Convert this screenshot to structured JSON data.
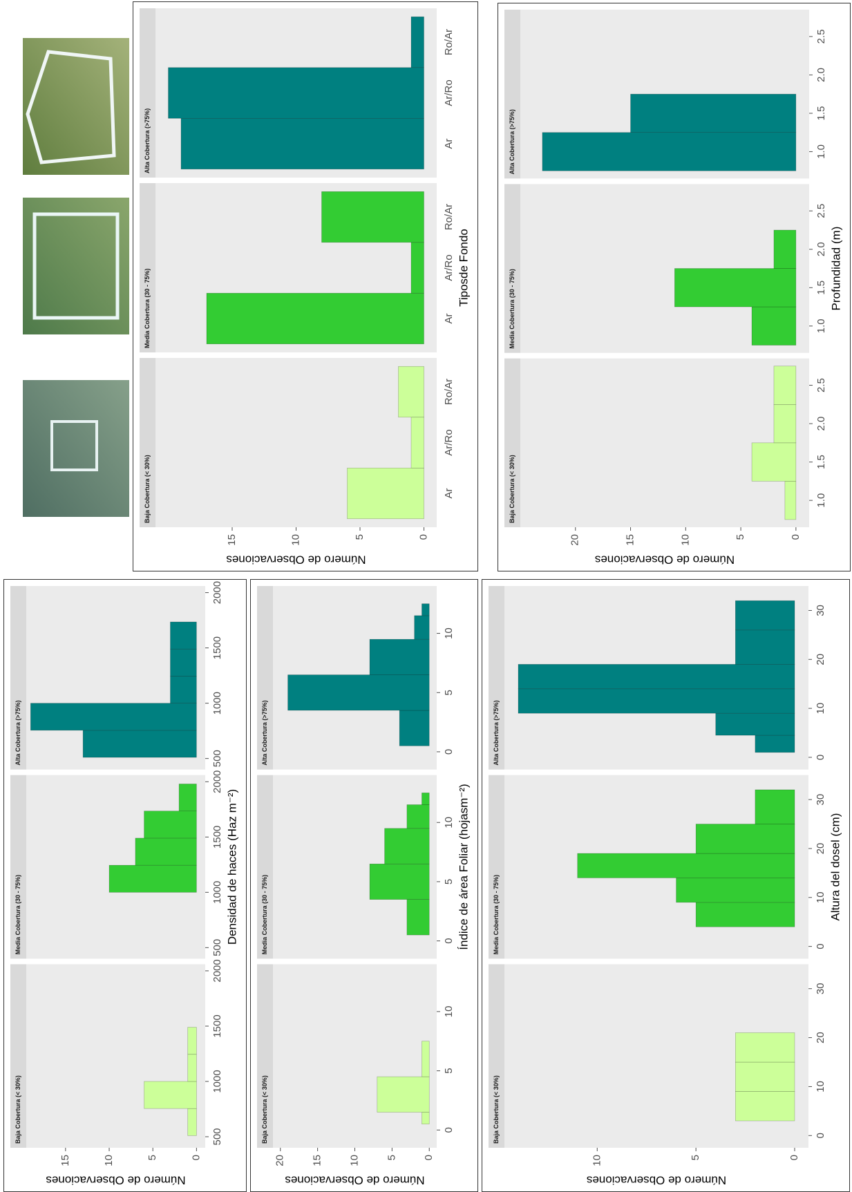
{
  "chart_data": [
    {
      "type": "histogram",
      "xlabel": "Densidad de haces (Haz m⁻²)",
      "ylabel": "Número de Observaciones",
      "xlim": [
        400,
        2060
      ],
      "xticks": [
        500,
        1000,
        1500,
        2000
      ],
      "ylim": [
        -1,
        19.5
      ],
      "yticks": [
        0,
        5,
        10,
        15
      ],
      "facets": [
        {
          "label": "Baja Cobertura (< 30%)",
          "color": "#ccff99",
          "bins": [
            510,
            755,
            1000,
            1245,
            1490
          ],
          "values": [
            1,
            6,
            1,
            1
          ]
        },
        {
          "label": "Media Cobertura (30 - 75%)",
          "color": "#33cc33",
          "bins": [
            1000,
            1245,
            1490,
            1735,
            1980
          ],
          "values": [
            10,
            7,
            6,
            2
          ]
        },
        {
          "label": "Alta Cobertura (>75%)",
          "color": "#008080",
          "bins": [
            510,
            755,
            1000,
            1245,
            1490,
            1735
          ],
          "values": [
            13,
            19,
            3,
            3,
            3
          ]
        }
      ]
    },
    {
      "type": "histogram",
      "xlabel": "Índice de área Foliar (hojasm⁻²)",
      "ylabel": "Número de Observaciones",
      "xlim": [
        -1.5,
        14
      ],
      "xticks": [
        0,
        5,
        10
      ],
      "ylim": [
        -1,
        21
      ],
      "yticks": [
        0,
        5,
        10,
        15,
        20
      ],
      "facets": [
        {
          "label": "Baja Cobertura (< 30%)",
          "color": "#ccff99",
          "bins": [
            0.5,
            1.5,
            4.5,
            7.5
          ],
          "values": [
            1,
            7,
            1
          ]
        },
        {
          "label": "Media Cobertura (30 - 75%)",
          "color": "#33cc33",
          "bins": [
            0.5,
            3.5,
            6.5,
            9.5,
            11.5,
            12.5
          ],
          "values": [
            3,
            8,
            6,
            3,
            1
          ]
        },
        {
          "label": "Alta Cobertura (>75%)",
          "color": "#008080",
          "bins": [
            0.5,
            3.5,
            6.5,
            9.5,
            11.5,
            12.5
          ],
          "values": [
            4,
            19,
            8,
            2,
            1
          ]
        }
      ]
    },
    {
      "type": "histogram",
      "xlabel": "Altura del dosel (cm)",
      "ylabel": "Número de Observaciones",
      "xlim": [
        -2.5,
        35
      ],
      "xticks": [
        0,
        10,
        20,
        30
      ],
      "ylim": [
        -0.7,
        14.7
      ],
      "yticks": [
        0,
        5,
        10
      ],
      "facets": [
        {
          "label": "Baja Cobertura (< 30%)",
          "color": "#ccff99",
          "bins": [
            3,
            9,
            15,
            21
          ],
          "values": [
            3,
            3,
            3
          ]
        },
        {
          "label": "Media Cobertura (30 - 75%)",
          "color": "#33cc33",
          "bins": [
            4,
            9,
            14,
            19,
            25,
            32
          ],
          "values": [
            5,
            6,
            11,
            5,
            2
          ]
        },
        {
          "label": "Alta Cobertura (>75%)",
          "color": "#008080",
          "bins": [
            1,
            4.5,
            9,
            14,
            19,
            26,
            32
          ],
          "values": [
            2,
            4,
            14,
            14,
            3,
            3
          ]
        }
      ]
    },
    {
      "type": "bar",
      "xlabel": "Tiposde Fondo",
      "ylabel": "Número de Observaciones",
      "categories": [
        "Ar",
        "Ar/Ro",
        "Ro/Ar"
      ],
      "ylim": [
        -1,
        21
      ],
      "yticks": [
        0,
        5,
        10,
        15
      ],
      "facets": [
        {
          "label": "Baja Cobertura (< 30%)",
          "color": "#ccff99",
          "values": [
            6,
            1,
            2
          ]
        },
        {
          "label": "Media Cobertura (30 - 75%)",
          "color": "#33cc33",
          "values": [
            17,
            1,
            8
          ]
        },
        {
          "label": "Alta Cobertura (>75%)",
          "color": "#008080",
          "values": [
            19,
            20,
            1
          ]
        }
      ]
    },
    {
      "type": "histogram",
      "xlabel": "Profundidad (m)",
      "ylabel": "Número de Observaciones",
      "xlim": [
        0.65,
        2.85
      ],
      "xticks": [
        {
          "value": 1,
          "label": "1.0"
        },
        1.5,
        {
          "value": 2,
          "label": "2.0"
        },
        2.5
      ],
      "ylim": [
        -1.2,
        25
      ],
      "yticks": [
        0,
        5,
        10,
        15,
        20
      ],
      "facets": [
        {
          "label": "Baja Cobertura (< 30%)",
          "color": "#ccff99",
          "bins": [
            0.75,
            1.25,
            1.75,
            2.25,
            2.75
          ],
          "values": [
            1,
            4,
            2,
            2
          ]
        },
        {
          "label": "Media Cobertura (30 - 75%)",
          "color": "#33cc33",
          "bins": [
            0.75,
            1.25,
            1.75,
            2.25
          ],
          "values": [
            4,
            11,
            2
          ]
        },
        {
          "label": "Alta Cobertura (>75%)",
          "color": "#008080",
          "bins": [
            0.75,
            1.25,
            1.75
          ],
          "values": [
            23,
            15
          ]
        }
      ]
    }
  ]
}
